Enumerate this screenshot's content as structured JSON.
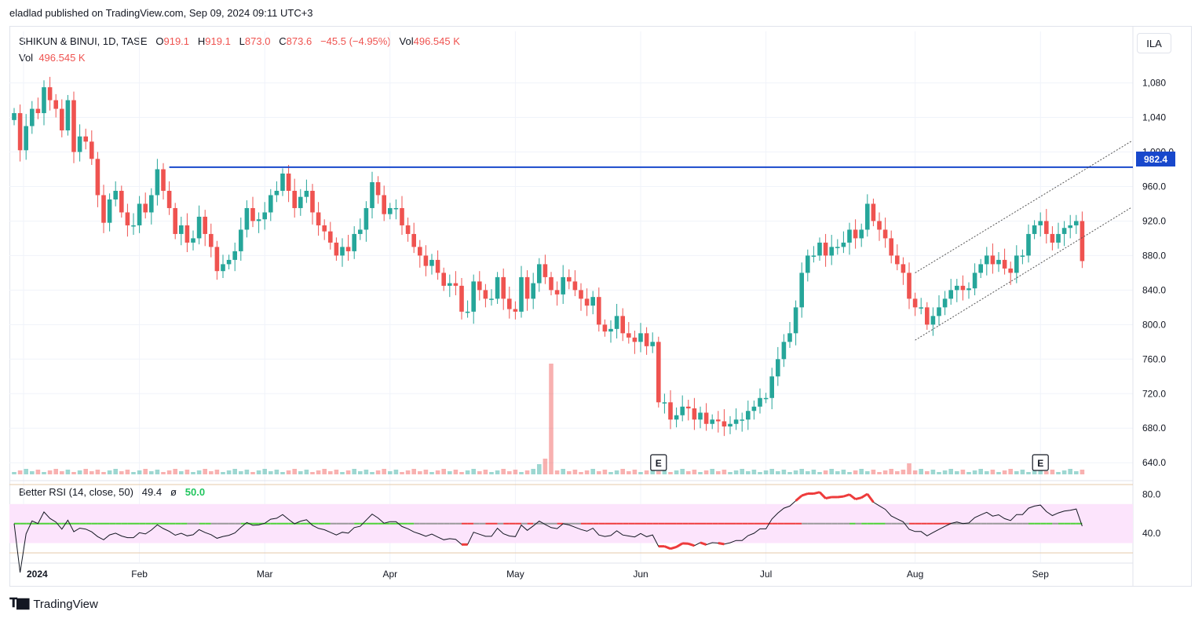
{
  "header": {
    "publisher": "eladlad published on TradingView.com, Sep 09, 2024 09:11 UTC+3"
  },
  "legend": {
    "symbol": "SHIKUN & BINUI, 1D, TASE",
    "o_label": "O",
    "o_value": "919.1",
    "h_label": "H",
    "h_value": "919.1",
    "l_label": "L",
    "l_value": "873.0",
    "c_label": "C",
    "c_value": "873.6",
    "change": "−45.5 (−4.95%)",
    "vol_label": "Vol",
    "vol_value": "496.545 K",
    "vol2_label": "Vol",
    "vol2_value": "496.545 K"
  },
  "rsi_legend": {
    "name": "Better RSI (14, close, 50)",
    "value": "49.4",
    "symbol": "ø",
    "level": "50.0"
  },
  "currency": "ILA",
  "last_price_tag": "982.4",
  "earnings_marker": "E",
  "footer": {
    "brand": "TradingView"
  },
  "colors": {
    "up": "#26a69a",
    "down": "#ef5350",
    "resistance": "#1848cc",
    "rsi_band": "#fce4fc",
    "rsi_green": "#4cd137",
    "rsi_red": "#ef3b3b"
  },
  "chart_data": [
    {
      "type": "candlestick",
      "symbol": "SHIKUN & BINUI",
      "yticks": [
        "1,080",
        "1,040",
        "1,000.0",
        "960.0",
        "920.0",
        "880.0",
        "840.0",
        "800.0",
        "760.0",
        "720.0",
        "680.0",
        "640.0"
      ],
      "ylim": [
        632,
        1096
      ],
      "xticks": [
        {
          "label": "2024",
          "i": 0
        },
        {
          "label": "Feb",
          "i": 21
        },
        {
          "label": "Mar",
          "i": 42
        },
        {
          "label": "Apr",
          "i": 63
        },
        {
          "label": "May",
          "i": 84
        },
        {
          "label": "Jun",
          "i": 105
        },
        {
          "label": "Jul",
          "i": 126
        },
        {
          "label": "Aug",
          "i": 151
        },
        {
          "label": "Sep",
          "i": 172
        }
      ],
      "close": [
        1045,
        1002,
        1030,
        1050,
        1045,
        1075,
        1060,
        1050,
        1025,
        1060,
        1000,
        1018,
        1012,
        992,
        950,
        918,
        945,
        955,
        930,
        915,
        915,
        940,
        930,
        950,
        980,
        955,
        935,
        905,
        915,
        895,
        900,
        925,
        905,
        890,
        862,
        870,
        875,
        885,
        910,
        935,
        920,
        922,
        930,
        950,
        955,
        975,
        955,
        935,
        948,
        955,
        930,
        915,
        908,
        895,
        880,
        890,
        885,
        905,
        910,
        935,
        965,
        950,
        928,
        935,
        935,
        915,
        905,
        890,
        880,
        868,
        875,
        860,
        845,
        848,
        845,
        815,
        815,
        850,
        840,
        830,
        830,
        855,
        830,
        818,
        815,
        855,
        830,
        848,
        870,
        855,
        840,
        835,
        855,
        850,
        840,
        830,
        822,
        832,
        800,
        792,
        795,
        810,
        790,
        785,
        780,
        790,
        775,
        780,
        710,
        710,
        690,
        695,
        705,
        703,
        690,
        698,
        685,
        690,
        688,
        682,
        685,
        690,
        690,
        700,
        705,
        715,
        715,
        740,
        760,
        780,
        790,
        820,
        860,
        880,
        880,
        895,
        880,
        890,
        890,
        895,
        910,
        900,
        910,
        940,
        920,
        910,
        900,
        880,
        870,
        860,
        830,
        820,
        820,
        800,
        810,
        820,
        830,
        840,
        845,
        840,
        842,
        860,
        870,
        880,
        870,
        875,
        865,
        860,
        880,
        880,
        905,
        915,
        920,
        905,
        895,
        905,
        912,
        915,
        920,
        873.6
      ],
      "open_note": "open of each bar equals previous close (approx.)",
      "resistance_level": 982.4,
      "channel_upper": [
        [
          151,
          860
        ],
        [
          180,
          982
        ]
      ],
      "channel_lower": [
        [
          151,
          782
        ],
        [
          180,
          905
        ]
      ],
      "earnings_bars": [
        108,
        172
      ]
    },
    {
      "type": "line",
      "name": "Better RSI (14, close, 50)",
      "yticks": [
        "80.0",
        "40.0"
      ],
      "ylim": [
        20,
        90
      ],
      "overbought": 70,
      "oversold": 30,
      "midline": 50
    }
  ]
}
